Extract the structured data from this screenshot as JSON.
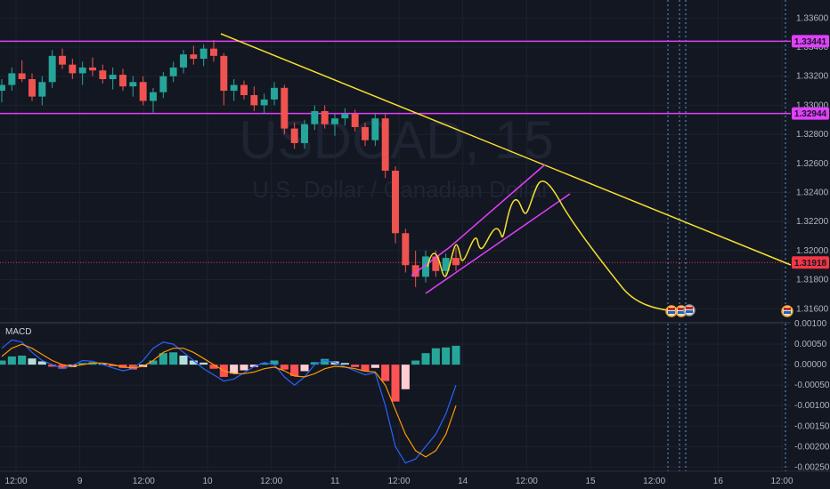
{
  "chart_data": {
    "type": "candlestick",
    "symbol": "USDCAD",
    "interval": "15",
    "description": "U.S. Dollar / Canadian Dollar",
    "price_axis": {
      "ylim": [
        1.3151,
        1.337
      ],
      "ticks": [
        "1.33600",
        "1.33400",
        "1.33200",
        "1.33000",
        "1.32800",
        "1.32600",
        "1.32400",
        "1.32200",
        "1.32000",
        "1.31800",
        "1.31600"
      ]
    },
    "time_axis": {
      "labels": [
        "12:00",
        "9",
        "12:00",
        "10",
        "12:00",
        "11",
        "12:00",
        "14",
        "12:00",
        "15",
        "12:00",
        "16",
        "12:00"
      ]
    },
    "price_tags": [
      {
        "value": "1.33441",
        "color": "#e040fb"
      },
      {
        "value": "1.32944",
        "color": "#e040fb"
      },
      {
        "value": "1.31918",
        "color": "#f23645"
      }
    ],
    "horizontal_lines": [
      {
        "y": 1.33441,
        "color": "#e040fb"
      },
      {
        "y": 1.32944,
        "color": "#e040fb"
      }
    ],
    "current_price": 1.31918,
    "candles": [
      [
        1.331,
        1.3318,
        1.3302,
        1.3314
      ],
      [
        1.3314,
        1.3326,
        1.331,
        1.3322
      ],
      [
        1.3322,
        1.3331,
        1.3316,
        1.3318
      ],
      [
        1.3318,
        1.3322,
        1.3303,
        1.3306
      ],
      [
        1.3306,
        1.332,
        1.33,
        1.3316
      ],
      [
        1.3316,
        1.3338,
        1.3312,
        1.3334
      ],
      [
        1.3334,
        1.3339,
        1.3325,
        1.3328
      ],
      [
        1.3328,
        1.3332,
        1.3318,
        1.3322
      ],
      [
        1.3322,
        1.333,
        1.3314,
        1.3326
      ],
      [
        1.3326,
        1.3333,
        1.332,
        1.3324
      ],
      [
        1.3324,
        1.3328,
        1.3315,
        1.3318
      ],
      [
        1.3318,
        1.3326,
        1.3311,
        1.3321
      ],
      [
        1.3321,
        1.3325,
        1.331,
        1.3313
      ],
      [
        1.3313,
        1.332,
        1.3306,
        1.3316
      ],
      [
        1.3316,
        1.332,
        1.33,
        1.3303
      ],
      [
        1.3303,
        1.3312,
        1.3295,
        1.3309
      ],
      [
        1.3309,
        1.3323,
        1.3305,
        1.332
      ],
      [
        1.332,
        1.333,
        1.3316,
        1.3326
      ],
      [
        1.3326,
        1.3338,
        1.3322,
        1.3335
      ],
      [
        1.3335,
        1.3341,
        1.3328,
        1.3332
      ],
      [
        1.3332,
        1.3342,
        1.3327,
        1.3339
      ],
      [
        1.3339,
        1.3345,
        1.333,
        1.3334
      ],
      [
        1.3334,
        1.3336,
        1.33,
        1.331
      ],
      [
        1.331,
        1.3318,
        1.3303,
        1.3314
      ],
      [
        1.3314,
        1.3317,
        1.3304,
        1.3307
      ],
      [
        1.3307,
        1.3313,
        1.3296,
        1.33
      ],
      [
        1.33,
        1.3308,
        1.3294,
        1.3304
      ],
      [
        1.3304,
        1.3316,
        1.33,
        1.3312
      ],
      [
        1.3312,
        1.3314,
        1.328,
        1.3284
      ],
      [
        1.3284,
        1.3288,
        1.327,
        1.3274
      ],
      [
        1.3274,
        1.329,
        1.327,
        1.3287
      ],
      [
        1.3287,
        1.33,
        1.3283,
        1.3296
      ],
      [
        1.3296,
        1.33,
        1.3284,
        1.3287
      ],
      [
        1.3287,
        1.3294,
        1.3279,
        1.3291
      ],
      [
        1.3291,
        1.3298,
        1.3286,
        1.3294
      ],
      [
        1.3294,
        1.3297,
        1.3282,
        1.3285
      ],
      [
        1.3285,
        1.3288,
        1.3272,
        1.3276
      ],
      [
        1.3276,
        1.3294,
        1.3272,
        1.3291
      ],
      [
        1.3291,
        1.3294,
        1.325,
        1.3255
      ],
      [
        1.3255,
        1.3258,
        1.3205,
        1.3212
      ],
      [
        1.3212,
        1.3215,
        1.3185,
        1.319
      ],
      [
        1.319,
        1.32,
        1.3175,
        1.3182
      ],
      [
        1.3182,
        1.32,
        1.3178,
        1.3196
      ],
      [
        1.3196,
        1.32,
        1.3182,
        1.3186
      ],
      [
        1.3186,
        1.3198,
        1.3182,
        1.3195
      ],
      [
        1.3195,
        1.3202,
        1.3186,
        1.319
      ]
    ],
    "macd": {
      "title": "MACD",
      "ylim": [
        -0.0026,
        0.001
      ],
      "ticks": [
        "0.00100",
        "0.00050",
        "0.00000",
        "-0.00050",
        "-0.00100",
        "-0.00150",
        "-0.00200",
        "-0.00250"
      ],
      "histogram": [
        0.0001,
        0.0002,
        0.00022,
        0.00015,
        8e-05,
        -5e-05,
        -0.0001,
        -6e-05,
        4e-05,
        6e-05,
        2e-05,
        -4e-05,
        -8e-05,
        -0.00012,
        -6e-05,
        0.0001,
        0.00028,
        0.0003,
        0.00022,
        0.0001,
        5e-05,
        -0.0001,
        -0.0003,
        -0.00022,
        -0.00014,
        -6e-05,
        4e-05,
        0.0001,
        -0.00012,
        -0.00028,
        -0.00016,
        6e-05,
        0.00014,
        8e-05,
        4e-05,
        -6e-05,
        -0.00016,
        -8e-05,
        -0.0004,
        -0.0009,
        -0.0006,
        0.0001,
        0.00028,
        0.0004,
        0.00042,
        0.00046
      ],
      "macd_line": [
        0.0004,
        0.0006,
        0.00055,
        0.0003,
        0.0001,
        0.0,
        -0.0001,
        -2e-05,
        0.0001,
        8e-05,
        0.0,
        -8e-05,
        -0.00015,
        -0.0001,
        0.0001,
        0.0004,
        0.00055,
        0.0005,
        0.0003,
        0.0001,
        -0.0001,
        -0.00025,
        -0.0004,
        -0.00035,
        -0.0002,
        -5e-05,
        5e-05,
        0.0,
        -0.0003,
        -0.0005,
        -0.0003,
        0.0,
        0.0001,
        5e-05,
        -5e-05,
        -0.00015,
        -0.00025,
        -0.0002,
        -0.001,
        -0.002,
        -0.0024,
        -0.0023,
        -0.002,
        -0.0017,
        -0.0012,
        -0.0005
      ],
      "signal_line": [
        0.0002,
        0.0004,
        0.0005,
        0.0004,
        0.00025,
        0.0001,
        0.0,
        -4e-05,
        0.0,
        4e-05,
        4e-05,
        0.0,
        -6e-05,
        -8e-05,
        -4e-05,
        0.0001,
        0.0003,
        0.0004,
        0.0004,
        0.0003,
        0.00015,
        0.0,
        -0.00015,
        -0.00022,
        -0.00022,
        -0.00018,
        -0.0001,
        -6e-05,
        -0.00015,
        -0.00028,
        -0.0003,
        -0.00022,
        -0.0001,
        -4e-05,
        -6e-05,
        -0.0001,
        -0.00016,
        -0.00018,
        -0.0005,
        -0.0011,
        -0.0017,
        -0.0021,
        -0.00225,
        -0.0021,
        -0.0017,
        -0.001
      ]
    }
  }
}
